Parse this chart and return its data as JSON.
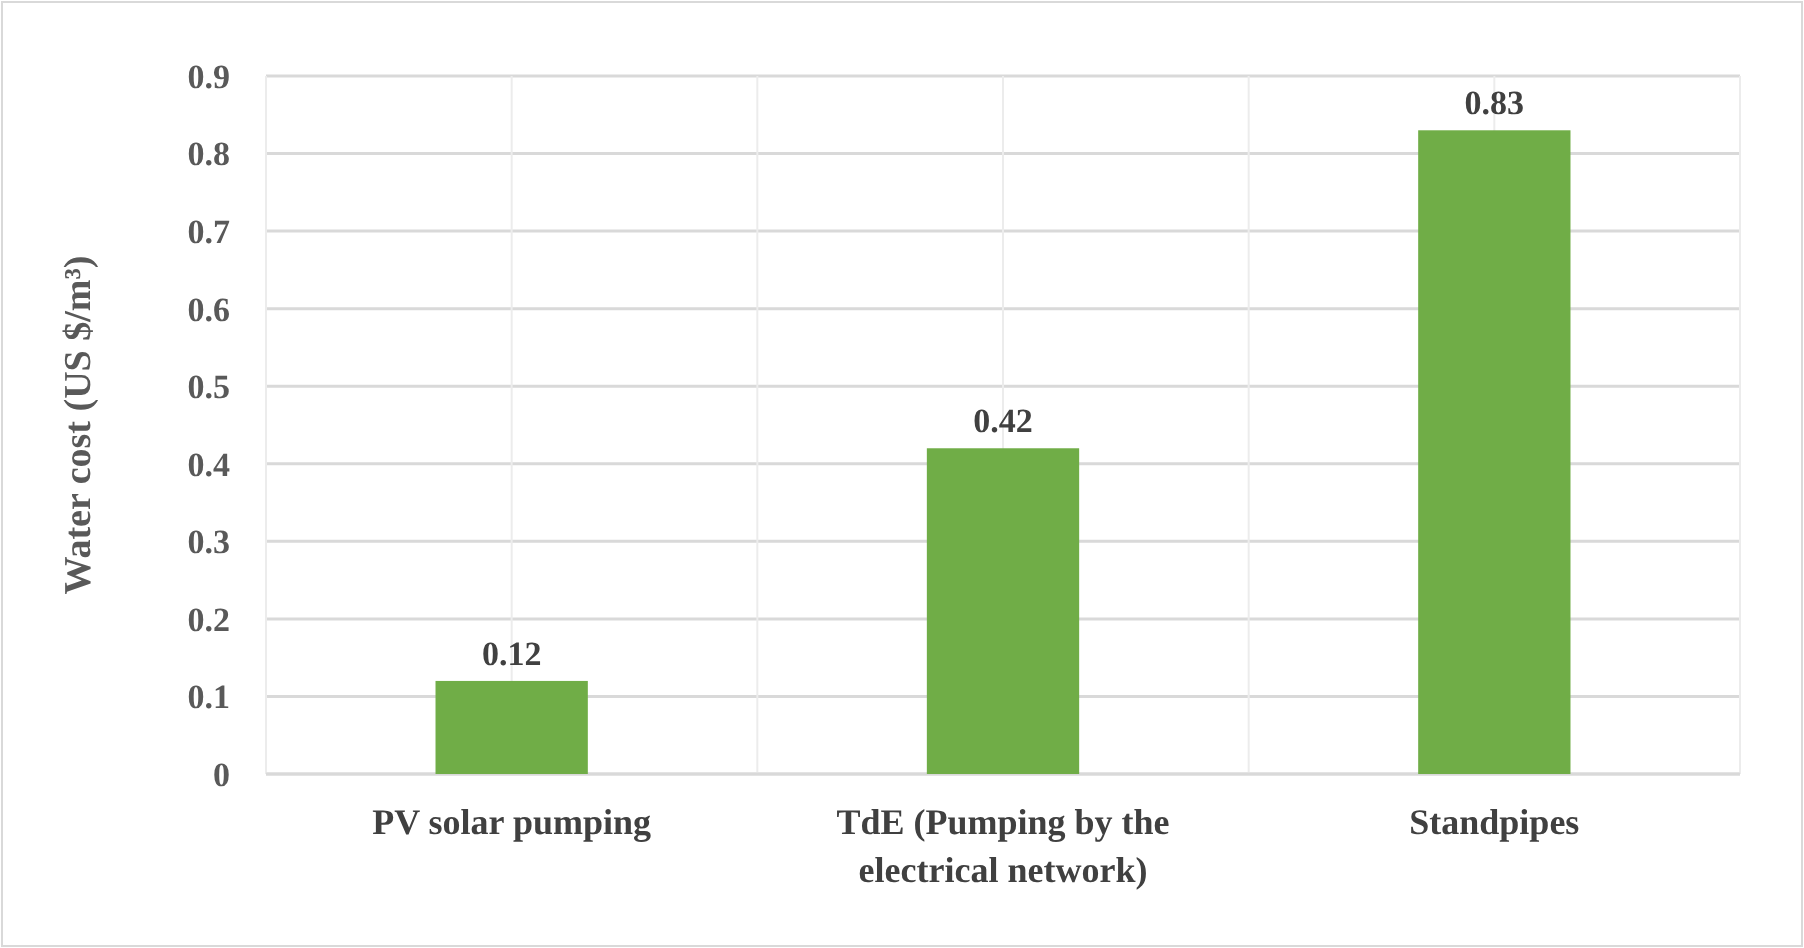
{
  "chart_data": {
    "type": "bar",
    "ylabel": "Water cost (US $/m³)",
    "categories": [
      "PV solar pumping",
      "TdE (Pumping by the electrical network)",
      "Standpipes"
    ],
    "values": [
      0.12,
      0.42,
      0.83
    ],
    "color": "#70ad47",
    "ylim": [
      0,
      0.9
    ],
    "yticks": [
      {
        "value": 0,
        "label": "0"
      },
      0.1,
      0.2,
      0.3,
      0.4,
      0.5,
      0.6,
      0.7,
      0.8,
      0.9
    ],
    "grid": true,
    "data_labels": true
  }
}
